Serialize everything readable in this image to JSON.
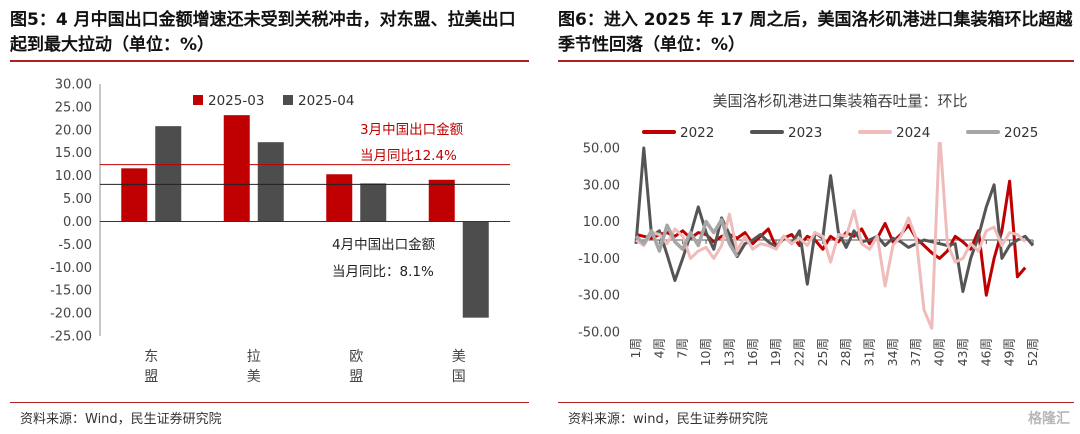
{
  "left": {
    "title": "图5：4 月中国出口金额增速还未受到关税冲击，对东盟、拉美出口起到最大拉动（单位：%）",
    "source": "资料来源：Wind，民生证券研究院",
    "chart_data": {
      "type": "bar",
      "categories": [
        "东盟",
        "拉美",
        "欧盟",
        "美国"
      ],
      "series": [
        {
          "name": "2025-03",
          "color": "#c00000",
          "values": [
            11.6,
            23.2,
            10.3,
            9.1
          ]
        },
        {
          "name": "2025-04",
          "color": "#4d4d4d",
          "values": [
            20.8,
            17.3,
            8.3,
            -21.0
          ]
        }
      ],
      "ylim": [
        -25,
        30
      ],
      "yticks": [
        "30.00",
        "25.00",
        "20.00",
        "15.00",
        "10.00",
        "5.00",
        "0.00",
        "-5.00",
        "-10.00",
        "-15.00",
        "-20.00",
        "-25.00"
      ],
      "reference_lines": [
        {
          "value": 12.4,
          "color": "#c00000",
          "label1": "3月中国出口金额",
          "label2": "当月同比12.4%"
        },
        {
          "value": 8.1,
          "color": "#222222",
          "label1": "4月中国出口金额",
          "label2": "当月同比：8.1%"
        }
      ],
      "legend": "top-left"
    }
  },
  "right": {
    "title": "图6：进入 2025 年 17 周之后，美国洛杉矶港进口集装箱环比超越季节性回落（单位：%）",
    "source": "资料来源：wind，民生证券研究院",
    "watermark": "格隆汇",
    "chart_data": {
      "type": "line",
      "title": "美国洛杉矶港进口集装箱吞吐量：环比",
      "ylim": [
        -50,
        50
      ],
      "yticks": [
        "50.00",
        "30.00",
        "10.00",
        "-10.00",
        "-30.00",
        "-50.00"
      ],
      "x_tick_labels": [
        "1周",
        "4周",
        "7周",
        "10周",
        "13周",
        "16周",
        "19周",
        "22周",
        "25周",
        "28周",
        "31周",
        "34周",
        "37周",
        "40周",
        "43周",
        "46周",
        "49周",
        "52周"
      ],
      "x_tick_weeks": [
        1,
        4,
        7,
        10,
        13,
        16,
        19,
        22,
        25,
        28,
        31,
        34,
        37,
        40,
        43,
        46,
        49,
        52
      ],
      "legend": "top",
      "series": [
        {
          "name": "2022",
          "color": "#c00000",
          "width": 3,
          "values": [
            3,
            2,
            1,
            3,
            4,
            2,
            5,
            1,
            4,
            3,
            -1,
            2,
            3,
            1,
            4,
            -2,
            2,
            6,
            -4,
            1,
            3,
            -3,
            2,
            0,
            -5,
            2,
            -1,
            4,
            2,
            6,
            -2,
            1,
            9,
            -1,
            3,
            8,
            1,
            -3,
            -7,
            -10,
            -6,
            2,
            -1,
            -5,
            5,
            -30,
            -10,
            5,
            32,
            -20,
            -15
          ]
        },
        {
          "name": "2023",
          "color": "#555555",
          "width": 3,
          "values": [
            -2,
            50,
            2,
            5,
            -8,
            -22,
            -10,
            3,
            18,
            4,
            -5,
            12,
            3,
            -9,
            -2,
            0,
            3,
            -1,
            -4,
            2,
            -2,
            5,
            -24,
            4,
            1,
            35,
            4,
            -4,
            5,
            -1,
            0,
            2,
            -3,
            1,
            -1,
            -4,
            -2,
            0,
            -1,
            -2,
            -3,
            -2,
            -28,
            -10,
            2,
            18,
            30,
            -10,
            -3,
            0,
            2,
            -3
          ]
        },
        {
          "name": "2024",
          "color": "#efbcbc",
          "width": 3,
          "values": [
            0,
            -3,
            4,
            3,
            -2,
            6,
            2,
            -10,
            -6,
            -4,
            -10,
            -3,
            14,
            -6,
            2,
            -5,
            -2,
            -3,
            -5,
            2,
            -2,
            1,
            -3,
            4,
            2,
            -12,
            3,
            2,
            16,
            -2,
            -5,
            2,
            -25,
            -3,
            2,
            12,
            1,
            -38,
            -48,
            58,
            -2,
            -12,
            -10,
            -2,
            -6,
            5,
            7,
            -3,
            4,
            3,
            -1
          ]
        },
        {
          "name": "2025",
          "color": "#a6a6a6",
          "width": 3.5,
          "values": [
            2,
            -2,
            5,
            -6,
            8,
            -1,
            -5,
            4,
            -3,
            10,
            4,
            11,
            -2,
            -9
          ]
        }
      ]
    }
  }
}
